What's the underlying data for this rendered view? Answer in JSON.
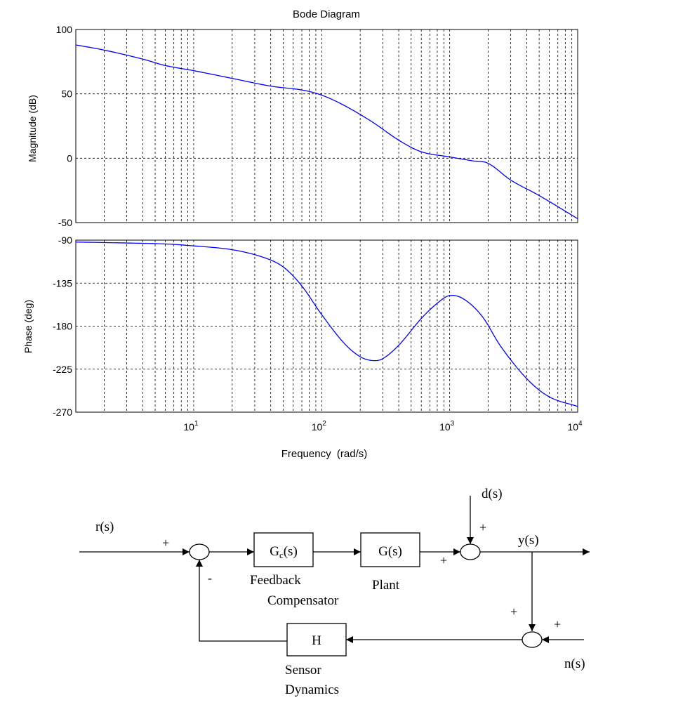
{
  "chart_data": [
    {
      "type": "line",
      "title": "Bode Diagram",
      "ylabel": "Magnitude (dB)",
      "xlabel": "",
      "xscale": "log",
      "xlim": [
        1.2,
        10000
      ],
      "ylim": [
        -50,
        100
      ],
      "yticks": [
        100,
        50,
        0,
        -50
      ],
      "grid": true,
      "line_color": "#0000ff",
      "series": [
        {
          "x": [
            1.2,
            2,
            4,
            6,
            10,
            20,
            40,
            70,
            100,
            150,
            250,
            400,
            600,
            1000,
            1500,
            2000,
            3000,
            5000,
            10000
          ],
          "values": [
            88,
            84,
            77,
            72,
            68,
            62,
            56,
            53,
            49,
            41,
            28,
            14,
            5,
            1,
            -2,
            -4,
            -17,
            -29,
            -47
          ]
        }
      ]
    },
    {
      "type": "line",
      "title": "",
      "ylabel": "Phase (deg)",
      "xlabel": "Frequency  (rad/s)",
      "xscale": "log",
      "xlim": [
        1.2,
        10000
      ],
      "ylim": [
        -270,
        -90
      ],
      "yticks": [
        -90,
        -135,
        -180,
        -225,
        -270
      ],
      "xticks": [
        10,
        100,
        1000,
        10000
      ],
      "xtick_labels": [
        {
          "base": "10",
          "exp": "1"
        },
        {
          "base": "10",
          "exp": "2"
        },
        {
          "base": "10",
          "exp": "3"
        },
        {
          "base": "10",
          "exp": "4"
        }
      ],
      "grid": true,
      "line_color": "#0000ff",
      "series": [
        {
          "x": [
            1.2,
            3,
            6,
            10,
            20,
            35,
            50,
            70,
            100,
            150,
            200,
            250,
            300,
            400,
            600,
            800,
            1000,
            1300,
            1800,
            2500,
            4000,
            6000,
            10000
          ],
          "values": [
            -92,
            -93,
            -94,
            -96,
            -100,
            -108,
            -118,
            -138,
            -168,
            -198,
            -212,
            -216,
            -214,
            -200,
            -172,
            -156,
            -148,
            -152,
            -170,
            -201,
            -235,
            -254,
            -264
          ]
        }
      ]
    }
  ],
  "block_diagram": {
    "signals": {
      "input": "r(s)",
      "disturbance": "d(s)",
      "output": "y(s)",
      "noise": "n(s)"
    },
    "blocks": {
      "compensator": {
        "symbol_main": "G",
        "symbol_sub": "c",
        "symbol_arg": "(s)",
        "label_line1": "Feedback",
        "label_line2": "Compensator"
      },
      "plant": {
        "symbol": "G(s)",
        "label": "Plant"
      },
      "sensor": {
        "symbol": "H",
        "label_line1": "Sensor",
        "label_line2": "Dynamics"
      }
    },
    "signs": {
      "sum1_ref": "+",
      "sum1_feedback": "-",
      "sum2_plant": "+",
      "sum2_disturbance": "+",
      "sum3_output": "+",
      "sum3_noise": "+"
    }
  }
}
